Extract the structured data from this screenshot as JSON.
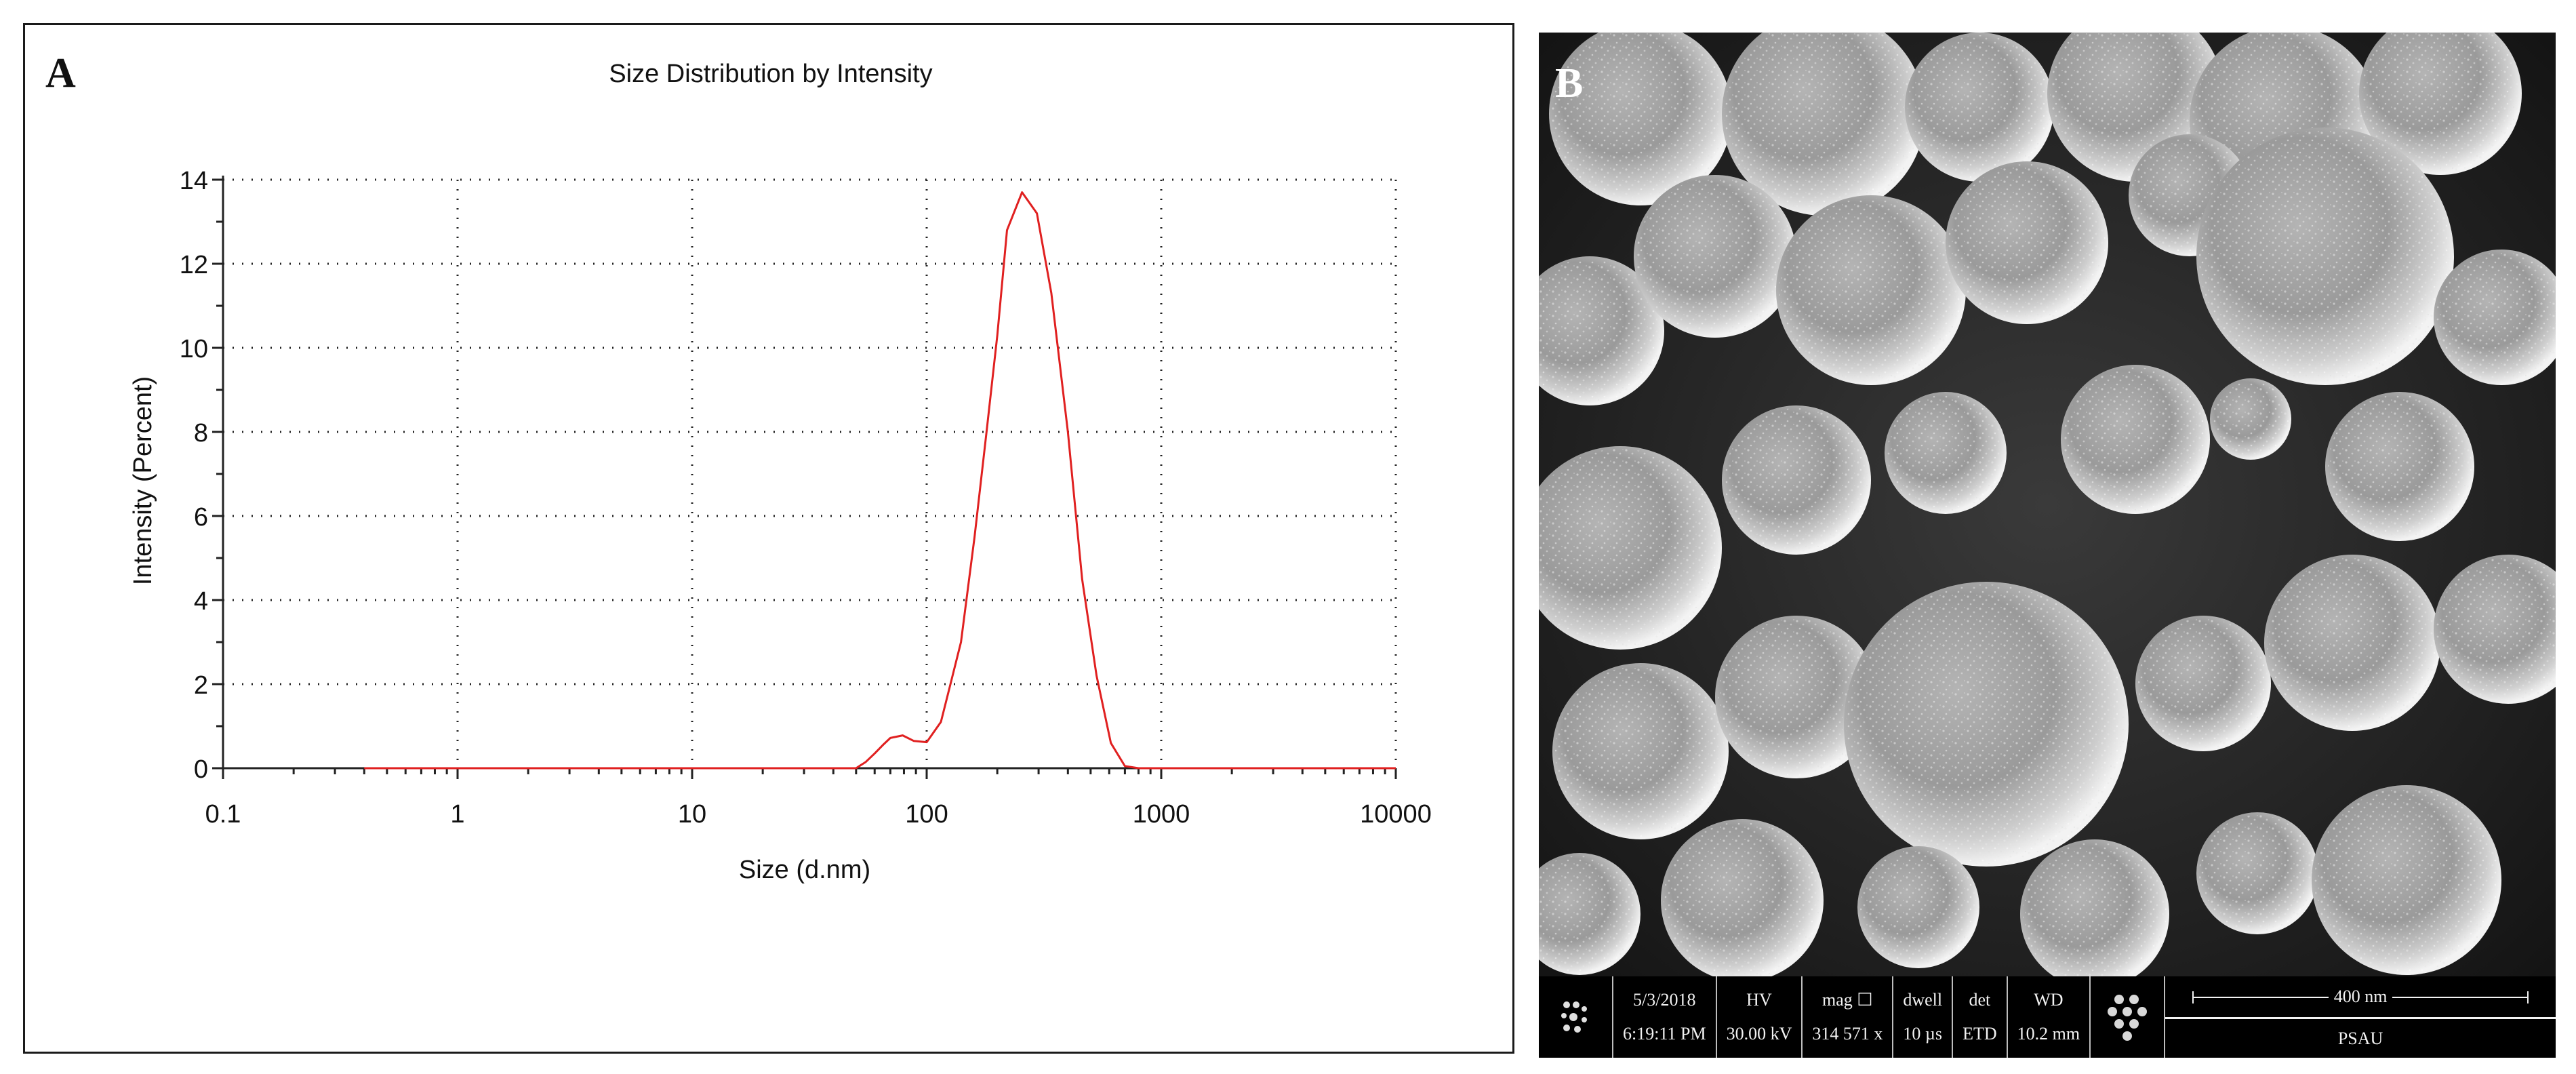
{
  "panel_a": {
    "letter": "A",
    "chart_data": {
      "type": "line",
      "title": "Size Distribution by Intensity",
      "xlabel": "Size (d.nm)",
      "ylabel": "Intensity (Percent)",
      "xscale": "log",
      "xlim": [
        0.1,
        10000
      ],
      "ylim": [
        0,
        14
      ],
      "xticks": [
        "0.1",
        "1",
        "10",
        "100",
        "1000",
        "10000"
      ],
      "yticks": [
        "0",
        "2",
        "4",
        "6",
        "8",
        "10",
        "12",
        "14"
      ],
      "grid": true,
      "line_color": "#e02020",
      "series": [
        {
          "x": [
            0.4,
            50,
            55,
            60,
            65,
            70,
            79,
            88,
            100,
            115,
            125,
            140,
            160,
            180,
            200,
            220,
            255,
            295,
            340,
            400,
            460,
            530,
            610,
            700,
            800,
            1000,
            10000
          ],
          "y": [
            0,
            0,
            0.15,
            0.35,
            0.55,
            0.72,
            0.78,
            0.65,
            0.62,
            1.1,
            1.9,
            3.0,
            5.5,
            8.0,
            10.3,
            12.8,
            13.7,
            13.2,
            11.3,
            8.0,
            4.5,
            2.2,
            0.6,
            0.05,
            0,
            0,
            0
          ]
        }
      ]
    }
  },
  "panel_b": {
    "letter": "B",
    "info": {
      "date": "5/3/2018",
      "time": "6:19:11 PM",
      "hv_label": "HV",
      "hv_value": "30.00 kV",
      "mag_label": "mag ☐",
      "mag_value": "314 571 x",
      "dwell_label": "dwell",
      "dwell_value": "10 µs",
      "det_label": "det",
      "det_value": "ETD",
      "wd_label": "WD",
      "wd_value": "10.2 mm",
      "scale_label": "400 nm",
      "lab_label": "PSAU"
    }
  }
}
